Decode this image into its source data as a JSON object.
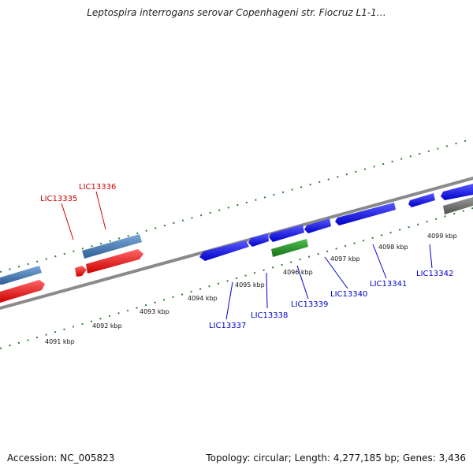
{
  "title": "Leptospira interrogans serovar Copenhageni str. Fiocruz L1-1…",
  "footer": {
    "accession": "Accession: NC_005823",
    "stats": "Topology: circular; Length: 4,277,185 bp; Genes: 3,436"
  },
  "tick_labels": [
    "4091 kbp",
    "4092 kbp",
    "4093 kbp",
    "4094 kbp",
    "4095 kbp",
    "4096 kbp",
    "4097 kbp",
    "4098 kbp",
    "4099 kbp"
  ],
  "gene_labels": [
    {
      "name": "LIC13335",
      "color": "#cc0000"
    },
    {
      "name": "LIC13336",
      "color": "#cc0000"
    },
    {
      "name": "LIC13337",
      "color": "#0000cc"
    },
    {
      "name": "LIC13338",
      "color": "#0000cc"
    },
    {
      "name": "LIC13339",
      "color": "#0000cc"
    },
    {
      "name": "LIC13340",
      "color": "#0000cc"
    },
    {
      "name": "LIC13341",
      "color": "#0000cc"
    },
    {
      "name": "LIC13342",
      "color": "#0000cc"
    }
  ],
  "colors": {
    "forward_gene": "#3b6ea5",
    "reverse_gene": "#ee0000",
    "blue_gene": "#1010ee",
    "green_gene": "#1a8a1a",
    "gray_gene": "#666666",
    "backbone": "#888888",
    "ticks": "#2e7d2e"
  }
}
